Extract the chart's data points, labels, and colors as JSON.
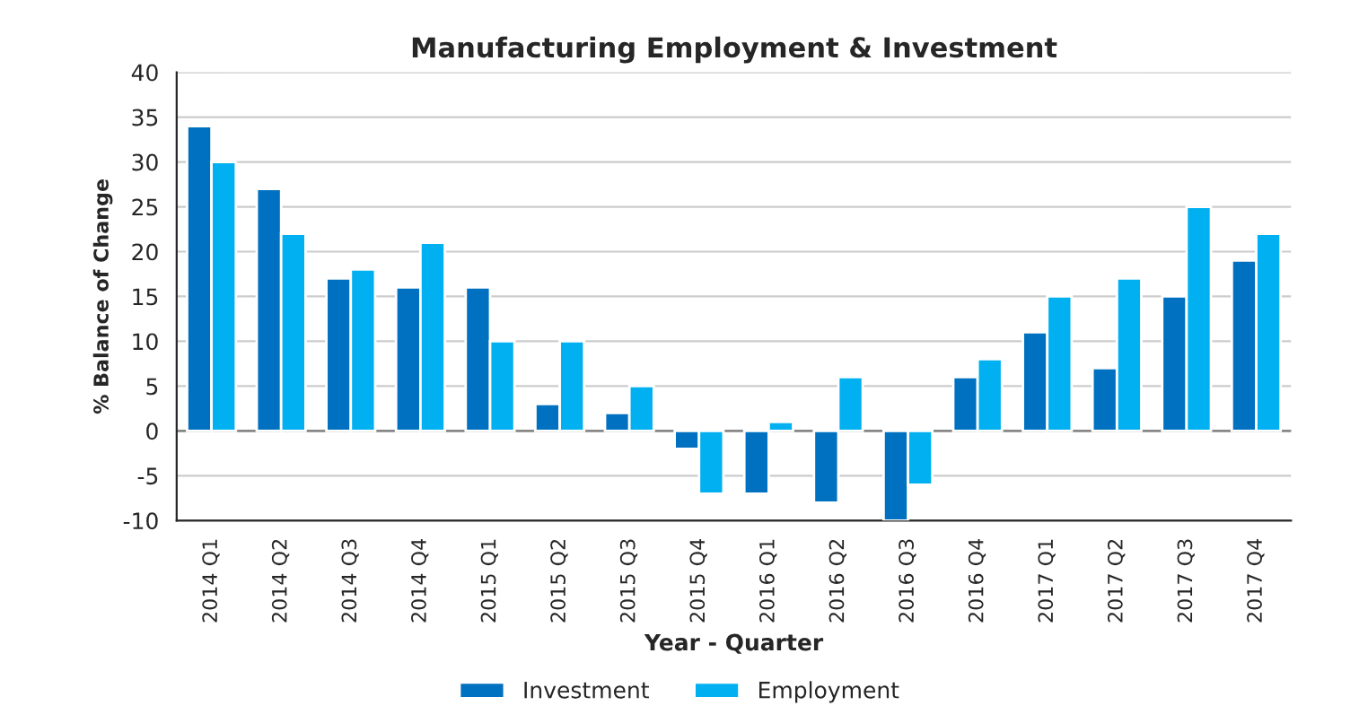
{
  "chart_data": {
    "type": "bar",
    "title": "Manufacturing Employment & Investment",
    "xlabel": "Year - Quarter",
    "ylabel": "% Balance of Change",
    "categories": [
      "2014 Q1",
      "2014 Q2",
      "2014 Q3",
      "2014 Q4",
      "2015 Q1",
      "2015 Q2",
      "2015 Q3",
      "2015 Q4",
      "2016 Q1",
      "2016 Q2",
      "2016 Q3",
      "2016 Q4",
      "2017 Q1",
      "2017 Q2",
      "2017 Q3",
      "2017 Q4"
    ],
    "series": [
      {
        "name": "Investment",
        "color": "#0070c0",
        "values": [
          34,
          27,
          17,
          16,
          16,
          3,
          2,
          -2,
          -7,
          -8,
          -10,
          6,
          11,
          7,
          15,
          19
        ]
      },
      {
        "name": "Employment",
        "color": "#00b0f0",
        "values": [
          30,
          22,
          18,
          21,
          10,
          10,
          5,
          -7,
          1,
          6,
          -6,
          8,
          15,
          17,
          25,
          22
        ]
      }
    ],
    "ylim": [
      -10,
      40
    ],
    "yticks": [
      -10,
      -5,
      0,
      5,
      10,
      15,
      20,
      25,
      30,
      35,
      40
    ],
    "grid": "y",
    "legend": "bottom"
  }
}
